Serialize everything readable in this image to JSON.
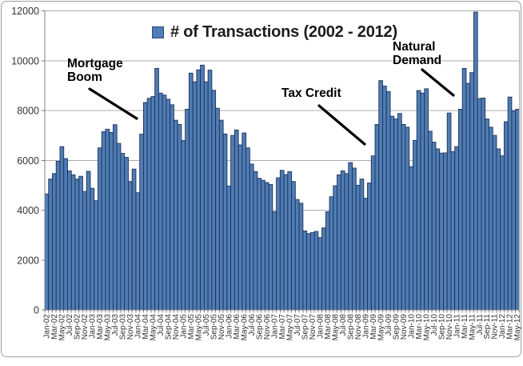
{
  "chart": {
    "legend_label": "# of Transactions (2002 - 2012)",
    "annotations": {
      "mortgage_boom": "Mortgage\nBoom",
      "tax_credit": "Tax Credit",
      "natural_demand": "Natural\nDemand"
    }
  },
  "chart_data": {
    "type": "bar",
    "title": "# of Transactions (2002 - 2012)",
    "legend_position": "top-center",
    "grid": true,
    "ylim": [
      0,
      12000
    ],
    "y_tick_labels": [
      "0",
      "2000",
      "4000",
      "6000",
      "8000",
      "10000",
      "12000"
    ],
    "x_first_month": "Jan-02",
    "x_last_month": "May-12",
    "x_tick_labels": [
      "Jan-02",
      "Mar-02",
      "May-02",
      "Jul-02",
      "Sep-02",
      "Nov-02",
      "Jan-03",
      "Mar-03",
      "May-03",
      "Jul-03",
      "Sep-03",
      "Nov-03",
      "Jan-04",
      "Mar-04",
      "May-04",
      "Jul-04",
      "Sep-04",
      "Nov-04",
      "Jan-05",
      "Mar-05",
      "May-05",
      "Jul-05",
      "Sep-05",
      "Nov-05",
      "Jan-06",
      "Mar-06",
      "May-06",
      "Jul-06",
      "Sep-06",
      "Nov-06",
      "Jan-07",
      "Mar-07",
      "May-07",
      "Jul-07",
      "Sep-07",
      "Nov-07",
      "Jan-08",
      "Mar-08",
      "May-08",
      "Jul-08",
      "Sep-08",
      "Nov-08",
      "Jan-09",
      "Mar-09",
      "May-09",
      "Jul-09",
      "Sep-09",
      "Nov-09",
      "Jan-10",
      "Mar-10",
      "May-10",
      "Jul-10",
      "Sep-10",
      "Nov-10",
      "Jan-11",
      "Mar-11",
      "May-11",
      "Jul-11",
      "Sep-11",
      "Nov-11",
      "Jan-12",
      "Mar-12",
      "May-12"
    ],
    "values_note": "monthly values Jan-2002 through May-2012, estimated from pixels",
    "values": [
      4650,
      5250,
      5470,
      5960,
      6550,
      6070,
      5580,
      5420,
      5250,
      5360,
      4750,
      5560,
      4880,
      4380,
      6500,
      7150,
      7250,
      7120,
      7430,
      6680,
      6280,
      6120,
      5150,
      5650,
      4700,
      7050,
      8320,
      8490,
      8560,
      9690,
      8700,
      8620,
      8450,
      8230,
      7610,
      7440,
      6800,
      8050,
      9500,
      9150,
      9630,
      9820,
      9150,
      9620,
      8810,
      8090,
      7610,
      7060,
      4970,
      7000,
      7220,
      6620,
      7100,
      6500,
      5850,
      5550,
      5280,
      5200,
      5110,
      5030,
      3940,
      5300,
      5600,
      5430,
      5550,
      5150,
      4430,
      4280,
      3170,
      3060,
      3100,
      3150,
      2900,
      3290,
      3940,
      4540,
      4980,
      5420,
      5580,
      5470,
      5910,
      5690,
      5000,
      5250,
      4480,
      5090,
      6180,
      7440,
      9200,
      8980,
      8760,
      7770,
      7660,
      7880,
      7440,
      7330,
      5750,
      6800,
      8800,
      8700,
      8870,
      7170,
      6730,
      6460,
      6290,
      6300,
      7900,
      6350,
      6550,
      8050,
      9690,
      9090,
      9520,
      11950,
      8480,
      8500,
      7660,
      7330,
      7000,
      6460,
      6180,
      7550,
      8540,
      7990,
      8050
    ],
    "annotations": [
      {
        "label": "Mortgage Boom",
        "points_at": "2004 run-up"
      },
      {
        "label": "Tax Credit",
        "points_at": "2009 surge"
      },
      {
        "label": "Natural Demand",
        "points_at": "2010-2011 recovery"
      }
    ],
    "colors": {
      "bar_fill": "#4F7DB5",
      "bar_stroke": "#1C3156",
      "gridline": "#ADADAD",
      "axis_line": "#7F7F7F",
      "tick_text": "#333333",
      "title_text": "#1C1C1C",
      "annotation_text": "#000000"
    }
  }
}
